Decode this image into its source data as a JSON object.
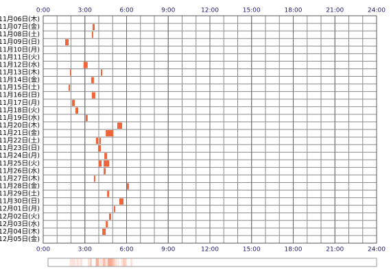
{
  "chart_data": {
    "type": "timeline",
    "categories": [
      "11月06日(木)",
      "11月07日(金)",
      "11月08日(土)",
      "11月09日(日)",
      "11月10日(月)",
      "11月11日(火)",
      "11月12日(水)",
      "11月13日(木)",
      "11月14日(金)",
      "11月15日(土)",
      "11月16日(日)",
      "11月17日(月)",
      "11月18日(火)",
      "11月19日(水)",
      "11月20日(木)",
      "11月21日(金)",
      "11月22日(土)",
      "11月23日(日)",
      "11月24日(月)",
      "11月25日(火)",
      "11月26日(水)",
      "11月27日(木)",
      "11月28日(金)",
      "11月29日(土)",
      "11月30日(日)",
      "12月01日(月)",
      "12月02日(火)",
      "12月03日(水)",
      "12月04日(木)",
      "12月05日(金)"
    ],
    "segments": [
      [],
      [
        [
          3.55,
          3.7
        ]
      ],
      [
        [
          3.5,
          3.6
        ]
      ],
      [
        [
          1.58,
          1.83
        ]
      ],
      [],
      [],
      [
        [
          2.9,
          3.2
        ]
      ],
      [
        [
          1.93,
          2.02
        ],
        [
          4.15,
          4.25
        ]
      ],
      [
        [
          3.45,
          3.65
        ]
      ],
      [
        [
          1.83,
          1.93
        ]
      ],
      [
        [
          3.5,
          3.75
        ]
      ],
      [
        [
          2.07,
          2.27
        ]
      ],
      [
        [
          2.32,
          2.52
        ]
      ],
      [
        [
          3.06,
          3.2
        ]
      ],
      [
        [
          5.33,
          5.68
        ]
      ],
      [
        [
          4.5,
          5.05
        ]
      ],
      [
        [
          3.8,
          3.95
        ],
        [
          4.05,
          4.15
        ]
      ],
      [
        [
          3.95,
          4.15
        ]
      ],
      [
        [
          4.4,
          4.6
        ]
      ],
      [
        [
          4.0,
          4.2
        ],
        [
          4.35,
          4.75
        ]
      ],
      [
        [
          4.35,
          4.5
        ]
      ],
      [
        [
          3.65,
          3.75
        ]
      ],
      [
        [
          6.02,
          6.17
        ]
      ],
      [
        [
          4.6,
          4.75
        ]
      ],
      [
        [
          5.48,
          5.78
        ]
      ],
      [
        [
          5.09,
          5.19
        ]
      ],
      [
        [
          4.74,
          4.89
        ]
      ],
      [
        [
          4.5,
          4.65
        ]
      ],
      [
        [
          4.25,
          4.5
        ]
      ],
      []
    ],
    "color": "#f0643a",
    "xlim": [
      0,
      24
    ],
    "xticks": [
      {
        "value": 0,
        "label": "0:00"
      },
      {
        "value": 3,
        "label": "3:00"
      },
      {
        "value": 6,
        "label": "6:00"
      },
      {
        "value": 9,
        "label": "9:00"
      },
      {
        "value": 12,
        "label": "12:00"
      },
      {
        "value": 15,
        "label": "15:00"
      },
      {
        "value": 18,
        "label": "18:00"
      },
      {
        "value": 21,
        "label": "21:00"
      },
      {
        "value": 24,
        "label": "24:00"
      }
    ],
    "grid_step": 1
  }
}
